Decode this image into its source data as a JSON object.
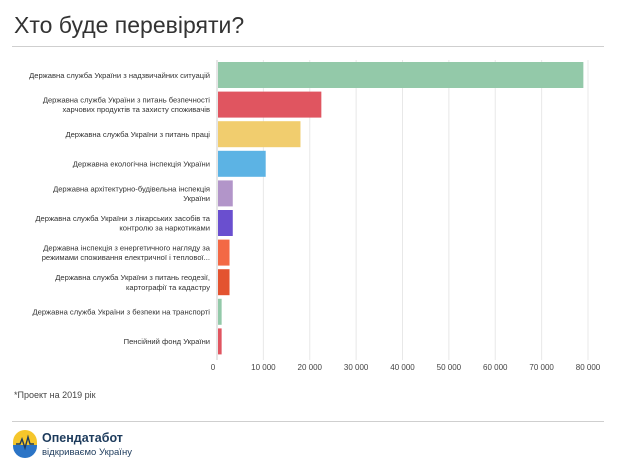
{
  "header": {
    "title": "Хто буде перевіряти?"
  },
  "footnote": "*Проект на 2019 рік",
  "logo": {
    "name": "Опендатабот",
    "tagline": "відкриваємо Україну"
  },
  "chart_data": {
    "type": "bar",
    "orientation": "horizontal",
    "title": "Хто буде перевіряти?",
    "categories": [
      [
        "Державна служба України з надзвичайних ситуацій"
      ],
      [
        "Державна служба України з питань безпечності",
        "харчових продуктів та захисту споживачів"
      ],
      [
        "Державна служба України з питань праці"
      ],
      [
        "Державна екологічна інспекція України"
      ],
      [
        "Державна архітектурно-будівельна інспекція",
        "України"
      ],
      [
        "Державна служба України з лікарських засобів та",
        "контролю за наркотиками"
      ],
      [
        "Державна інспекція з енергетичного нагляду за",
        "режимами споживання електричної і теплової..."
      ],
      [
        "Державна служба України з питань геодезії,",
        "картографії та кадастру"
      ],
      [
        "Державна служба України з безпеки на транспорті"
      ],
      [
        "Пенсійний фонд України"
      ]
    ],
    "values": [
      79000,
      22500,
      18000,
      10500,
      3400,
      3400,
      2700,
      2700,
      1000,
      1000
    ],
    "colors": [
      "#93c9a9",
      "#e05560",
      "#f1cd6e",
      "#5cb3e4",
      "#b295c9",
      "#6a4fcf",
      "#f36945",
      "#e35330",
      "#93c9a9",
      "#e05560"
    ],
    "xlim": [
      0,
      80000
    ],
    "xticks": [
      0,
      10000,
      20000,
      30000,
      40000,
      50000,
      60000,
      70000,
      80000
    ],
    "xtick_labels": [
      "0",
      "10 000",
      "20 000",
      "30 000",
      "40 000",
      "50 000",
      "60 000",
      "70 000",
      "80 000"
    ],
    "grid": true
  }
}
